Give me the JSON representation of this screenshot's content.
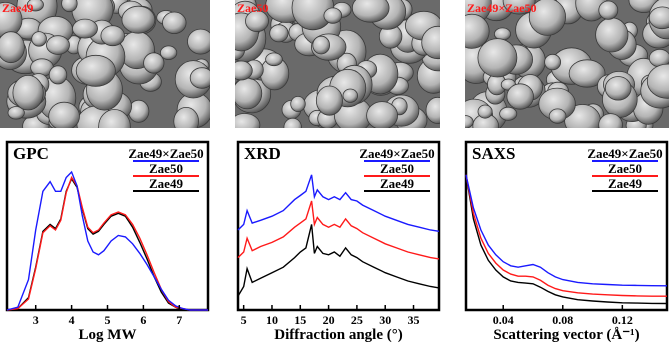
{
  "micrographs": [
    {
      "label": "Zae49"
    },
    {
      "label": "Zae50"
    },
    {
      "label": "Zae49×Zae50"
    }
  ],
  "chart_data": [
    {
      "type": "line",
      "title": "GPC",
      "xlabel": "Log MW",
      "ylabel": "",
      "xlim": [
        2.2,
        7.8
      ],
      "ylim": [
        0,
        1.0
      ],
      "xticks": [
        3,
        4,
        5,
        6,
        7
      ],
      "legend_position": "top-right",
      "series": [
        {
          "name": "Zae49×Zae50",
          "color": "#1a1aff",
          "x": [
            2.2,
            2.5,
            2.8,
            3.0,
            3.2,
            3.4,
            3.55,
            3.7,
            3.85,
            4.0,
            4.15,
            4.3,
            4.45,
            4.6,
            4.75,
            4.9,
            5.1,
            5.3,
            5.5,
            5.7,
            5.9,
            6.1,
            6.3,
            6.5,
            6.7,
            6.9,
            7.1,
            7.3,
            7.5,
            7.8
          ],
          "y": [
            0.0,
            0.02,
            0.22,
            0.58,
            0.86,
            0.93,
            0.86,
            0.86,
            0.96,
            1.0,
            0.9,
            0.68,
            0.5,
            0.42,
            0.4,
            0.43,
            0.5,
            0.54,
            0.53,
            0.48,
            0.41,
            0.33,
            0.24,
            0.15,
            0.07,
            0.03,
            0.01,
            0.0,
            0.0,
            0.0
          ]
        },
        {
          "name": "Zae50",
          "color": "#ff1a1a",
          "x": [
            2.2,
            2.5,
            2.8,
            3.0,
            3.2,
            3.4,
            3.55,
            3.7,
            3.85,
            4.0,
            4.15,
            4.3,
            4.45,
            4.6,
            4.75,
            4.9,
            5.1,
            5.3,
            5.5,
            5.7,
            5.9,
            6.1,
            6.3,
            6.5,
            6.7,
            6.9,
            7.1,
            7.3,
            7.5,
            7.8
          ],
          "y": [
            0.0,
            0.01,
            0.08,
            0.3,
            0.56,
            0.61,
            0.58,
            0.65,
            0.85,
            0.96,
            0.9,
            0.74,
            0.6,
            0.56,
            0.58,
            0.63,
            0.69,
            0.71,
            0.69,
            0.62,
            0.52,
            0.4,
            0.27,
            0.15,
            0.06,
            0.02,
            0.01,
            0.0,
            0.0,
            0.0
          ]
        },
        {
          "name": "Zae49",
          "color": "#000000",
          "x": [
            2.2,
            2.5,
            2.8,
            3.0,
            3.2,
            3.4,
            3.55,
            3.7,
            3.85,
            4.0,
            4.15,
            4.3,
            4.45,
            4.6,
            4.75,
            4.9,
            5.1,
            5.3,
            5.5,
            5.7,
            5.9,
            6.1,
            6.3,
            6.5,
            6.7,
            6.9,
            7.1,
            7.3,
            7.5,
            7.8
          ],
          "y": [
            0.0,
            0.01,
            0.09,
            0.31,
            0.57,
            0.62,
            0.59,
            0.66,
            0.86,
            0.95,
            0.89,
            0.73,
            0.59,
            0.55,
            0.57,
            0.62,
            0.68,
            0.7,
            0.68,
            0.6,
            0.49,
            0.37,
            0.24,
            0.13,
            0.05,
            0.02,
            0.0,
            0.0,
            0.0,
            0.0
          ]
        }
      ]
    },
    {
      "type": "line",
      "title": "XRD",
      "xlabel": "Diffraction angle (°)",
      "ylabel": "",
      "xlim": [
        4,
        39.5
      ],
      "ylim": [
        0,
        1.0
      ],
      "xticks": [
        5,
        10,
        15,
        20,
        25,
        30,
        35
      ],
      "legend_position": "top-right",
      "series": [
        {
          "name": "Zae49×Zae50",
          "color": "#1a1aff",
          "x": [
            4,
            5,
            5.6,
            6.5,
            8,
            10,
            12,
            14,
            15,
            16,
            17,
            17.5,
            18,
            19,
            20,
            21,
            22,
            23,
            24,
            25,
            26,
            28,
            30,
            32,
            34,
            36,
            38,
            39.5
          ],
          "y": [
            0.58,
            0.62,
            0.72,
            0.63,
            0.65,
            0.68,
            0.72,
            0.8,
            0.83,
            0.86,
            0.98,
            0.82,
            0.87,
            0.82,
            0.8,
            0.82,
            0.8,
            0.85,
            0.8,
            0.79,
            0.76,
            0.72,
            0.68,
            0.65,
            0.62,
            0.6,
            0.58,
            0.57
          ]
        },
        {
          "name": "Zae50",
          "color": "#ff1a1a",
          "x": [
            4,
            5,
            5.6,
            6.5,
            8,
            10,
            12,
            14,
            15,
            16,
            17,
            17.5,
            18,
            19,
            20,
            21,
            22,
            23,
            24,
            25,
            26,
            28,
            30,
            32,
            34,
            36,
            38,
            39.5
          ],
          "y": [
            0.38,
            0.42,
            0.52,
            0.43,
            0.46,
            0.49,
            0.53,
            0.6,
            0.63,
            0.66,
            0.79,
            0.62,
            0.67,
            0.62,
            0.6,
            0.62,
            0.6,
            0.66,
            0.61,
            0.59,
            0.56,
            0.52,
            0.48,
            0.45,
            0.42,
            0.4,
            0.38,
            0.37
          ]
        },
        {
          "name": "Zae49",
          "color": "#000000",
          "x": [
            4,
            5,
            5.6,
            6.5,
            8,
            10,
            12,
            14,
            15,
            16,
            17,
            17.5,
            18,
            19,
            20,
            21,
            22,
            23,
            24,
            25,
            26,
            28,
            30,
            32,
            34,
            36,
            38,
            39.5
          ],
          "y": [
            0.1,
            0.17,
            0.3,
            0.2,
            0.23,
            0.27,
            0.31,
            0.38,
            0.42,
            0.45,
            0.62,
            0.41,
            0.46,
            0.41,
            0.4,
            0.42,
            0.39,
            0.45,
            0.4,
            0.38,
            0.35,
            0.31,
            0.27,
            0.24,
            0.21,
            0.19,
            0.17,
            0.16
          ]
        }
      ]
    },
    {
      "type": "line",
      "title": "SAXS",
      "xlabel": "Scattering vector (Å⁻¹)",
      "ylabel": "",
      "xlim": [
        0.015,
        0.15
      ],
      "ylim": [
        0,
        1.0
      ],
      "xticks": [
        0.04,
        0.08,
        0.12
      ],
      "xtick_labels": [
        "0.04",
        "0.08",
        "0.12"
      ],
      "legend_position": "top-right",
      "series": [
        {
          "name": "Zae49×Zae50",
          "color": "#1a1aff",
          "x": [
            0.015,
            0.02,
            0.025,
            0.03,
            0.035,
            0.04,
            0.045,
            0.05,
            0.055,
            0.06,
            0.065,
            0.07,
            0.075,
            0.08,
            0.09,
            0.1,
            0.11,
            0.12,
            0.13,
            0.14,
            0.15
          ],
          "y": [
            0.98,
            0.74,
            0.58,
            0.47,
            0.4,
            0.35,
            0.32,
            0.31,
            0.32,
            0.33,
            0.31,
            0.27,
            0.24,
            0.22,
            0.2,
            0.19,
            0.185,
            0.18,
            0.178,
            0.176,
            0.175
          ]
        },
        {
          "name": "Zae50",
          "color": "#ff1a1a",
          "x": [
            0.015,
            0.02,
            0.025,
            0.03,
            0.035,
            0.04,
            0.045,
            0.05,
            0.055,
            0.06,
            0.065,
            0.07,
            0.075,
            0.08,
            0.09,
            0.1,
            0.11,
            0.12,
            0.13,
            0.14,
            0.15
          ],
          "y": [
            0.98,
            0.7,
            0.52,
            0.41,
            0.34,
            0.29,
            0.26,
            0.245,
            0.245,
            0.24,
            0.215,
            0.18,
            0.155,
            0.14,
            0.125,
            0.115,
            0.11,
            0.105,
            0.102,
            0.1,
            0.1
          ]
        },
        {
          "name": "Zae49",
          "color": "#000000",
          "x": [
            0.015,
            0.02,
            0.025,
            0.03,
            0.035,
            0.04,
            0.045,
            0.05,
            0.055,
            0.06,
            0.065,
            0.07,
            0.075,
            0.08,
            0.09,
            0.1,
            0.11,
            0.12,
            0.13,
            0.14,
            0.15
          ],
          "y": [
            0.98,
            0.66,
            0.47,
            0.36,
            0.29,
            0.24,
            0.21,
            0.2,
            0.195,
            0.19,
            0.165,
            0.135,
            0.11,
            0.095,
            0.075,
            0.065,
            0.058,
            0.052,
            0.05,
            0.048,
            0.047
          ]
        }
      ]
    }
  ]
}
